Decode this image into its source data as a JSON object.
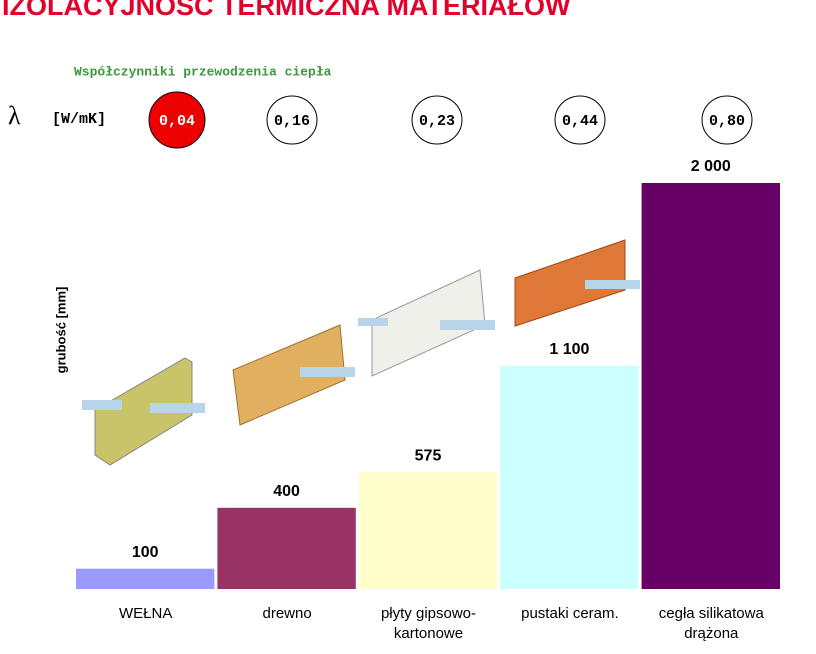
{
  "chart_data": {
    "type": "bar",
    "title": "IZOLACYJNOŚĆ TERMICZNA MATERIAŁÓW",
    "subtitle": "Współczynniki przewodzenia ciepła",
    "lambda_symbol": "λ",
    "lambda_unit": "[W/mK]",
    "lambda_labels": [
      "0,04",
      "0,16",
      "0,23",
      "0,44",
      "0,80"
    ],
    "y_label": "grubość [mm]",
    "categories": [
      "WEŁNA",
      "drewno",
      "płyty gipsowo-\nkartonowe",
      "pustaki ceram.",
      "cegła silikatowa\ndrążona"
    ],
    "values": [
      100,
      400,
      575,
      1100,
      2000
    ],
    "value_labels": [
      "100",
      "400",
      "575",
      "1 100",
      "2 000"
    ],
    "colors": [
      "#9999ff",
      "#993366",
      "#ffffcc",
      "#ccffff",
      "#660066"
    ],
    "ylim": [
      0,
      2000
    ]
  }
}
